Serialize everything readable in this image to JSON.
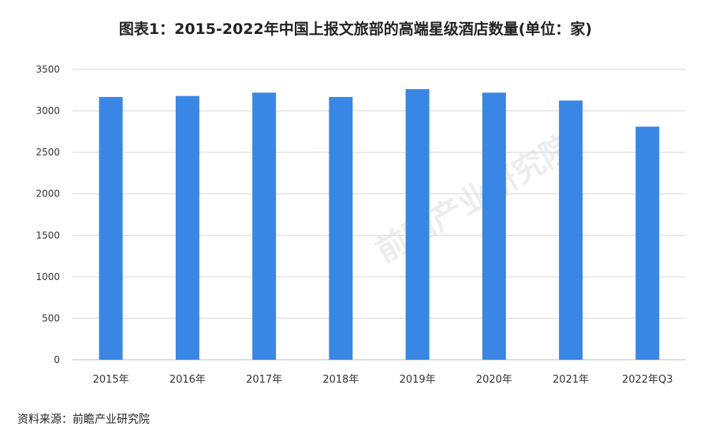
{
  "title": "图表1：2015-2022年中国上报文旅部的高端星级酒店数量(单位：家)",
  "source": "资料来源：前瞻产业研究院",
  "watermark": "前瞻产业研究院",
  "colors": {
    "bar": "#3a86e4",
    "grid": "#d9d9d9",
    "axis": "#bfbfbf",
    "text": "#333333"
  },
  "chart_data": {
    "type": "bar",
    "categories": [
      "2015年",
      "2016年",
      "2017年",
      "2018年",
      "2019年",
      "2020年",
      "2021年",
      "2022年Q3"
    ],
    "values": [
      3168,
      3180,
      3220,
      3168,
      3262,
      3220,
      3125,
      2810
    ],
    "ylim": [
      0,
      3500
    ],
    "yticks": [
      0,
      500,
      1000,
      1500,
      2000,
      2500,
      3000,
      3500
    ],
    "grid": true,
    "legend": "none"
  }
}
